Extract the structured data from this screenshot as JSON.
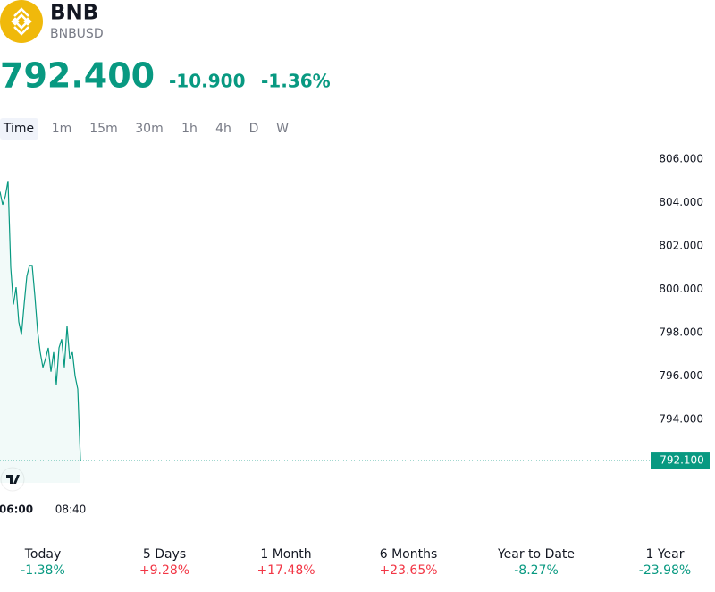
{
  "header": {
    "name": "BNB",
    "symbol": "BNBUSD",
    "price": "792.400",
    "change": "-10.900",
    "change_percent": "-1.36%",
    "color": "#089981"
  },
  "intervals": [
    "Time",
    "1m",
    "15m",
    "30m",
    "1h",
    "4h",
    "D",
    "W"
  ],
  "chart_data": {
    "type": "line",
    "categories": [
      null,
      null,
      null,
      null,
      null,
      null,
      "06:00",
      null,
      null,
      null,
      null,
      null,
      null,
      null,
      null,
      null,
      null,
      null,
      null,
      null,
      null,
      null,
      null,
      null,
      null,
      null,
      "08:40",
      null,
      null,
      null,
      null
    ],
    "series": [
      {
        "color": "#089981",
        "values": [
          804.5,
          803.9,
          804.3,
          805.0,
          801.0,
          799.3,
          800.1,
          798.5,
          797.9,
          799.3,
          800.6,
          801.1,
          801.1,
          799.7,
          798.1,
          797.1,
          796.4,
          796.8,
          797.3,
          796.2,
          797.1,
          795.6,
          797.3,
          797.7,
          796.4,
          798.3,
          796.8,
          797.1,
          796.0,
          795.4,
          792.1
        ],
        "value_labels": [
          null,
          null,
          null,
          null,
          null,
          null,
          null,
          null,
          null,
          null,
          null,
          null,
          null,
          null,
          null,
          null,
          null,
          null,
          null,
          null,
          null,
          null,
          null,
          null,
          null,
          null,
          null,
          null,
          null,
          null,
          "792.100"
        ]
      }
    ],
    "ylim": [
      791.1,
      806.7
    ],
    "yticks": [
      {
        "value": 794,
        "label": "794.000"
      },
      {
        "value": 796,
        "label": "796.000"
      },
      {
        "value": 798,
        "label": "798.000"
      },
      {
        "value": 800,
        "label": "800.000"
      },
      {
        "value": 802,
        "label": "802.000"
      },
      {
        "value": 804,
        "label": "804.000"
      },
      {
        "value": 806,
        "label": "806.000"
      }
    ],
    "grid": false
  },
  "performance": [
    {
      "period": "Today",
      "change": "-1.38%",
      "color": "#089981"
    },
    {
      "period": "5 Days",
      "change": "+9.28%",
      "color": "#f23645"
    },
    {
      "period": "1 Month",
      "change": "+17.48%",
      "color": "#f23645"
    },
    {
      "period": "6 Months",
      "change": "+23.65%",
      "color": "#f23645"
    },
    {
      "period": "Year to Date",
      "change": "-8.27%",
      "color": "#089981"
    },
    {
      "period": "1 Year",
      "change": "-23.98%",
      "color": "#089981"
    }
  ]
}
